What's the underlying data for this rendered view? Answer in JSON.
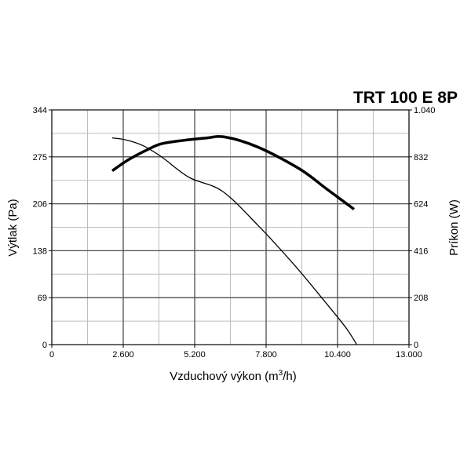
{
  "chart_data": {
    "type": "line",
    "title": "TRT 100 E 8P",
    "xlabel": "Vzduchový výkon (m",
    "xlabel_sup": "3",
    "xlabel_end": "/h)",
    "ylabel": "Výtlak (Pa)",
    "y2label": "Príkon (W)",
    "xlim": [
      0,
      13000
    ],
    "ylim": [
      0,
      344
    ],
    "y2lim": [
      0,
      1040
    ],
    "x_ticks": [
      0,
      2600,
      5200,
      7800,
      10400,
      13000
    ],
    "x_tick_labels": [
      "0",
      "2.600",
      "5.200",
      "7.800",
      "10.400",
      "13.000"
    ],
    "y_ticks": [
      0,
      69,
      138,
      206,
      275,
      344
    ],
    "y_tick_labels": [
      "0",
      "69",
      "138",
      "206",
      "275",
      "344"
    ],
    "y2_ticks": [
      0,
      208,
      416,
      624,
      832,
      1040
    ],
    "y2_tick_labels": [
      "0",
      "208",
      "416",
      "624",
      "832",
      "1.040"
    ],
    "grid": true,
    "series": [
      {
        "axis": "left",
        "style": "thin",
        "x": [
          2200,
          2700,
          3300,
          4000,
          5000,
          6200,
          7500,
          8800,
          10000,
          10700,
          11100
        ],
        "y": [
          303,
          300,
          292,
          275,
          245,
          225,
          175,
          118,
          60,
          25,
          0
        ]
      },
      {
        "axis": "right",
        "style": "thick",
        "x": [
          2200,
          2800,
          3500,
          4000,
          4800,
          5600,
          6300,
          7500,
          9000,
          10000,
          11000
        ],
        "y": [
          770,
          820,
          865,
          890,
          905,
          915,
          920,
          875,
          780,
          690,
          600
        ]
      }
    ]
  }
}
